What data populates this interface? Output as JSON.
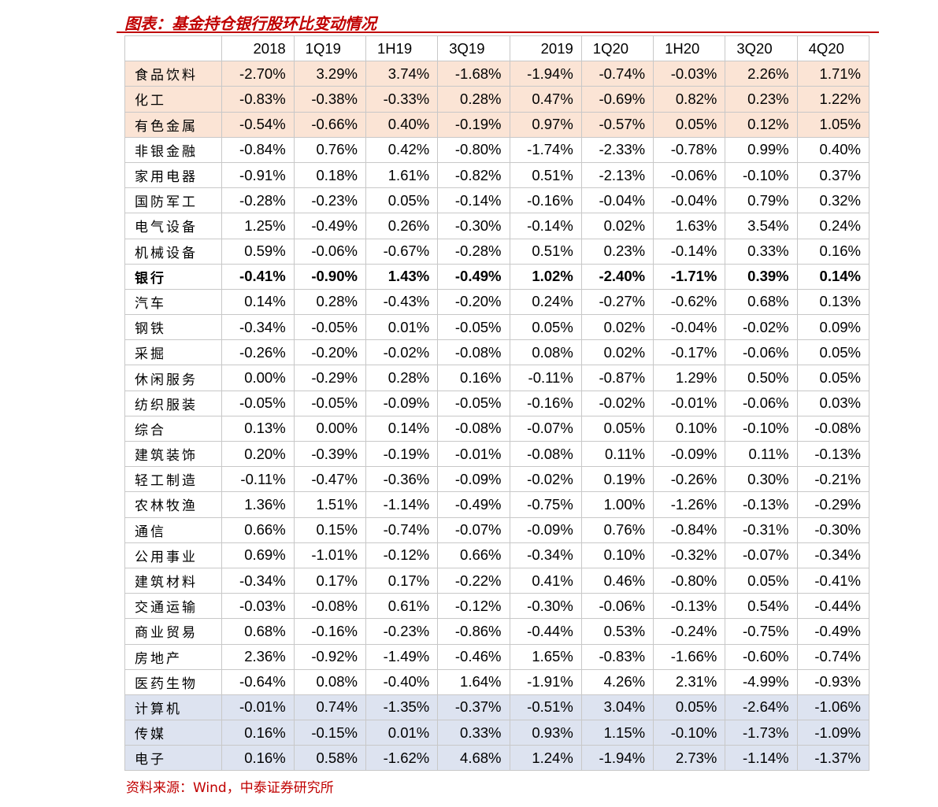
{
  "title": "图表：基金持仓银行股环比变动情况",
  "columns": [
    "",
    "2018",
    "1Q19",
    "1H19",
    "3Q19",
    "2019",
    "1Q20",
    "1H20",
    "3Q20",
    "4Q20"
  ],
  "rows": [
    {
      "name": "食品饮料",
      "highlight": "orange",
      "bold": false,
      "values": [
        "-2.70%",
        "3.29%",
        "3.74%",
        "-1.68%",
        "-1.94%",
        "-0.74%",
        "-0.03%",
        "2.26%",
        "1.71%"
      ]
    },
    {
      "name": "化工",
      "highlight": "orange",
      "bold": false,
      "values": [
        "-0.83%",
        "-0.38%",
        "-0.33%",
        "0.28%",
        "0.47%",
        "-0.69%",
        "0.82%",
        "0.23%",
        "1.22%"
      ]
    },
    {
      "name": "有色金属",
      "highlight": "orange",
      "bold": false,
      "values": [
        "-0.54%",
        "-0.66%",
        "0.40%",
        "-0.19%",
        "0.97%",
        "-0.57%",
        "0.05%",
        "0.12%",
        "1.05%"
      ]
    },
    {
      "name": "非银金融",
      "highlight": "",
      "bold": false,
      "values": [
        "-0.84%",
        "0.76%",
        "0.42%",
        "-0.80%",
        "-1.74%",
        "-2.33%",
        "-0.78%",
        "0.99%",
        "0.40%"
      ]
    },
    {
      "name": "家用电器",
      "highlight": "",
      "bold": false,
      "values": [
        "-0.91%",
        "0.18%",
        "1.61%",
        "-0.82%",
        "0.51%",
        "-2.13%",
        "-0.06%",
        "-0.10%",
        "0.37%"
      ]
    },
    {
      "name": "国防军工",
      "highlight": "",
      "bold": false,
      "values": [
        "-0.28%",
        "-0.23%",
        "0.05%",
        "-0.14%",
        "-0.16%",
        "-0.04%",
        "-0.04%",
        "0.79%",
        "0.32%"
      ]
    },
    {
      "name": "电气设备",
      "highlight": "",
      "bold": false,
      "values": [
        "1.25%",
        "-0.49%",
        "0.26%",
        "-0.30%",
        "-0.14%",
        "0.02%",
        "1.63%",
        "3.54%",
        "0.24%"
      ]
    },
    {
      "name": "机械设备",
      "highlight": "",
      "bold": false,
      "values": [
        "0.59%",
        "-0.06%",
        "-0.67%",
        "-0.28%",
        "0.51%",
        "0.23%",
        "-0.14%",
        "0.33%",
        "0.16%"
      ]
    },
    {
      "name": "银行",
      "highlight": "",
      "bold": true,
      "values": [
        "-0.41%",
        "-0.90%",
        "1.43%",
        "-0.49%",
        "1.02%",
        "-2.40%",
        "-1.71%",
        "0.39%",
        "0.14%"
      ]
    },
    {
      "name": "汽车",
      "highlight": "",
      "bold": false,
      "values": [
        "0.14%",
        "0.28%",
        "-0.43%",
        "-0.20%",
        "0.24%",
        "-0.27%",
        "-0.62%",
        "0.68%",
        "0.13%"
      ]
    },
    {
      "name": "钢铁",
      "highlight": "",
      "bold": false,
      "values": [
        "-0.34%",
        "-0.05%",
        "0.01%",
        "-0.05%",
        "0.05%",
        "0.02%",
        "-0.04%",
        "-0.02%",
        "0.09%"
      ]
    },
    {
      "name": "采掘",
      "highlight": "",
      "bold": false,
      "values": [
        "-0.26%",
        "-0.20%",
        "-0.02%",
        "-0.08%",
        "0.08%",
        "0.02%",
        "-0.17%",
        "-0.06%",
        "0.05%"
      ]
    },
    {
      "name": "休闲服务",
      "highlight": "",
      "bold": false,
      "values": [
        "0.00%",
        "-0.29%",
        "0.28%",
        "0.16%",
        "-0.11%",
        "-0.87%",
        "1.29%",
        "0.50%",
        "0.05%"
      ]
    },
    {
      "name": "纺织服装",
      "highlight": "",
      "bold": false,
      "values": [
        "-0.05%",
        "-0.05%",
        "-0.09%",
        "-0.05%",
        "-0.16%",
        "-0.02%",
        "-0.01%",
        "-0.06%",
        "0.03%"
      ]
    },
    {
      "name": "综合",
      "highlight": "",
      "bold": false,
      "values": [
        "0.13%",
        "0.00%",
        "0.14%",
        "-0.08%",
        "-0.07%",
        "0.05%",
        "0.10%",
        "-0.10%",
        "-0.08%"
      ]
    },
    {
      "name": "建筑装饰",
      "highlight": "",
      "bold": false,
      "values": [
        "0.20%",
        "-0.39%",
        "-0.19%",
        "-0.01%",
        "-0.08%",
        "0.11%",
        "-0.09%",
        "0.11%",
        "-0.13%"
      ]
    },
    {
      "name": "轻工制造",
      "highlight": "",
      "bold": false,
      "values": [
        "-0.11%",
        "-0.47%",
        "-0.36%",
        "-0.09%",
        "-0.02%",
        "0.19%",
        "-0.26%",
        "0.30%",
        "-0.21%"
      ]
    },
    {
      "name": "农林牧渔",
      "highlight": "",
      "bold": false,
      "values": [
        "1.36%",
        "1.51%",
        "-1.14%",
        "-0.49%",
        "-0.75%",
        "1.00%",
        "-1.26%",
        "-0.13%",
        "-0.29%"
      ]
    },
    {
      "name": "通信",
      "highlight": "",
      "bold": false,
      "values": [
        "0.66%",
        "0.15%",
        "-0.74%",
        "-0.07%",
        "-0.09%",
        "0.76%",
        "-0.84%",
        "-0.31%",
        "-0.30%"
      ]
    },
    {
      "name": "公用事业",
      "highlight": "",
      "bold": false,
      "values": [
        "0.69%",
        "-1.01%",
        "-0.12%",
        "0.66%",
        "-0.34%",
        "0.10%",
        "-0.32%",
        "-0.07%",
        "-0.34%"
      ]
    },
    {
      "name": "建筑材料",
      "highlight": "",
      "bold": false,
      "values": [
        "-0.34%",
        "0.17%",
        "0.17%",
        "-0.22%",
        "0.41%",
        "0.46%",
        "-0.80%",
        "0.05%",
        "-0.41%"
      ]
    },
    {
      "name": "交通运输",
      "highlight": "",
      "bold": false,
      "values": [
        "-0.03%",
        "-0.08%",
        "0.61%",
        "-0.12%",
        "-0.30%",
        "-0.06%",
        "-0.13%",
        "0.54%",
        "-0.44%"
      ]
    },
    {
      "name": "商业贸易",
      "highlight": "",
      "bold": false,
      "values": [
        "0.68%",
        "-0.16%",
        "-0.23%",
        "-0.86%",
        "-0.44%",
        "0.53%",
        "-0.24%",
        "-0.75%",
        "-0.49%"
      ]
    },
    {
      "name": "房地产",
      "highlight": "",
      "bold": false,
      "values": [
        "2.36%",
        "-0.92%",
        "-1.49%",
        "-0.46%",
        "1.65%",
        "-0.83%",
        "-1.66%",
        "-0.60%",
        "-0.74%"
      ]
    },
    {
      "name": "医药生物",
      "highlight": "",
      "bold": false,
      "values": [
        "-0.64%",
        "0.08%",
        "-0.40%",
        "1.64%",
        "-1.91%",
        "4.26%",
        "2.31%",
        "-4.99%",
        "-0.93%"
      ]
    },
    {
      "name": "计算机",
      "highlight": "blue",
      "bold": false,
      "values": [
        "-0.01%",
        "0.74%",
        "-1.35%",
        "-0.37%",
        "-0.51%",
        "3.04%",
        "0.05%",
        "-2.64%",
        "-1.06%"
      ]
    },
    {
      "name": "传媒",
      "highlight": "blue",
      "bold": false,
      "values": [
        "0.16%",
        "-0.15%",
        "0.01%",
        "0.33%",
        "0.93%",
        "1.15%",
        "-0.10%",
        "-1.73%",
        "-1.09%"
      ]
    },
    {
      "name": "电子",
      "highlight": "blue",
      "bold": false,
      "values": [
        "0.16%",
        "0.58%",
        "-1.62%",
        "4.68%",
        "1.24%",
        "-1.94%",
        "2.73%",
        "-1.14%",
        "-1.37%"
      ]
    }
  ],
  "colors": {
    "accent": "#c00000",
    "highlight_orange": "#fbe4d5",
    "highlight_blue": "#dde3f0"
  },
  "source": "资料来源：Wind，中泰证券研究所"
}
